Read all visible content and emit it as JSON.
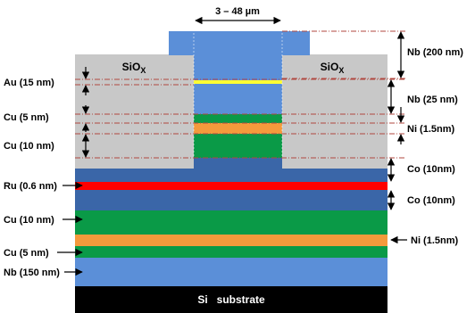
{
  "width_label": "3 – 48 µm",
  "sio_left": {
    "base": "SiO",
    "sub": "X"
  },
  "sio_right": {
    "base": "SiO",
    "sub": "X"
  },
  "substrate": "Si   substrate",
  "left_labels": {
    "au": "Au (15 nm)",
    "cu5_top": "Cu (5 nm)",
    "cu10_top": "Cu (10 nm)",
    "ru": "Ru (0.6 nm)",
    "cu10_bottom": "Cu (10 nm)",
    "cu5_bottom": "Cu (5 nm)",
    "nb150": "Nb (150 nm)"
  },
  "right_labels": {
    "nb200": "Nb (200 nm)",
    "nb25": "Nb (25 nm)",
    "ni_top": "Ni (1.5nm)",
    "co_top": "Co (10nm)",
    "co_bottom": "Co (10nm)",
    "ni_bottom": "Ni (1.5nm)"
  },
  "colors": {
    "nb": "#5b8fd8",
    "nb_dark": "#3a66a8",
    "cu": "#0a9a47",
    "ni": "#f49a3c",
    "ru": "#ff0000",
    "au": "#ffff33",
    "sio": "#c8c8c8",
    "si": "#000000"
  }
}
